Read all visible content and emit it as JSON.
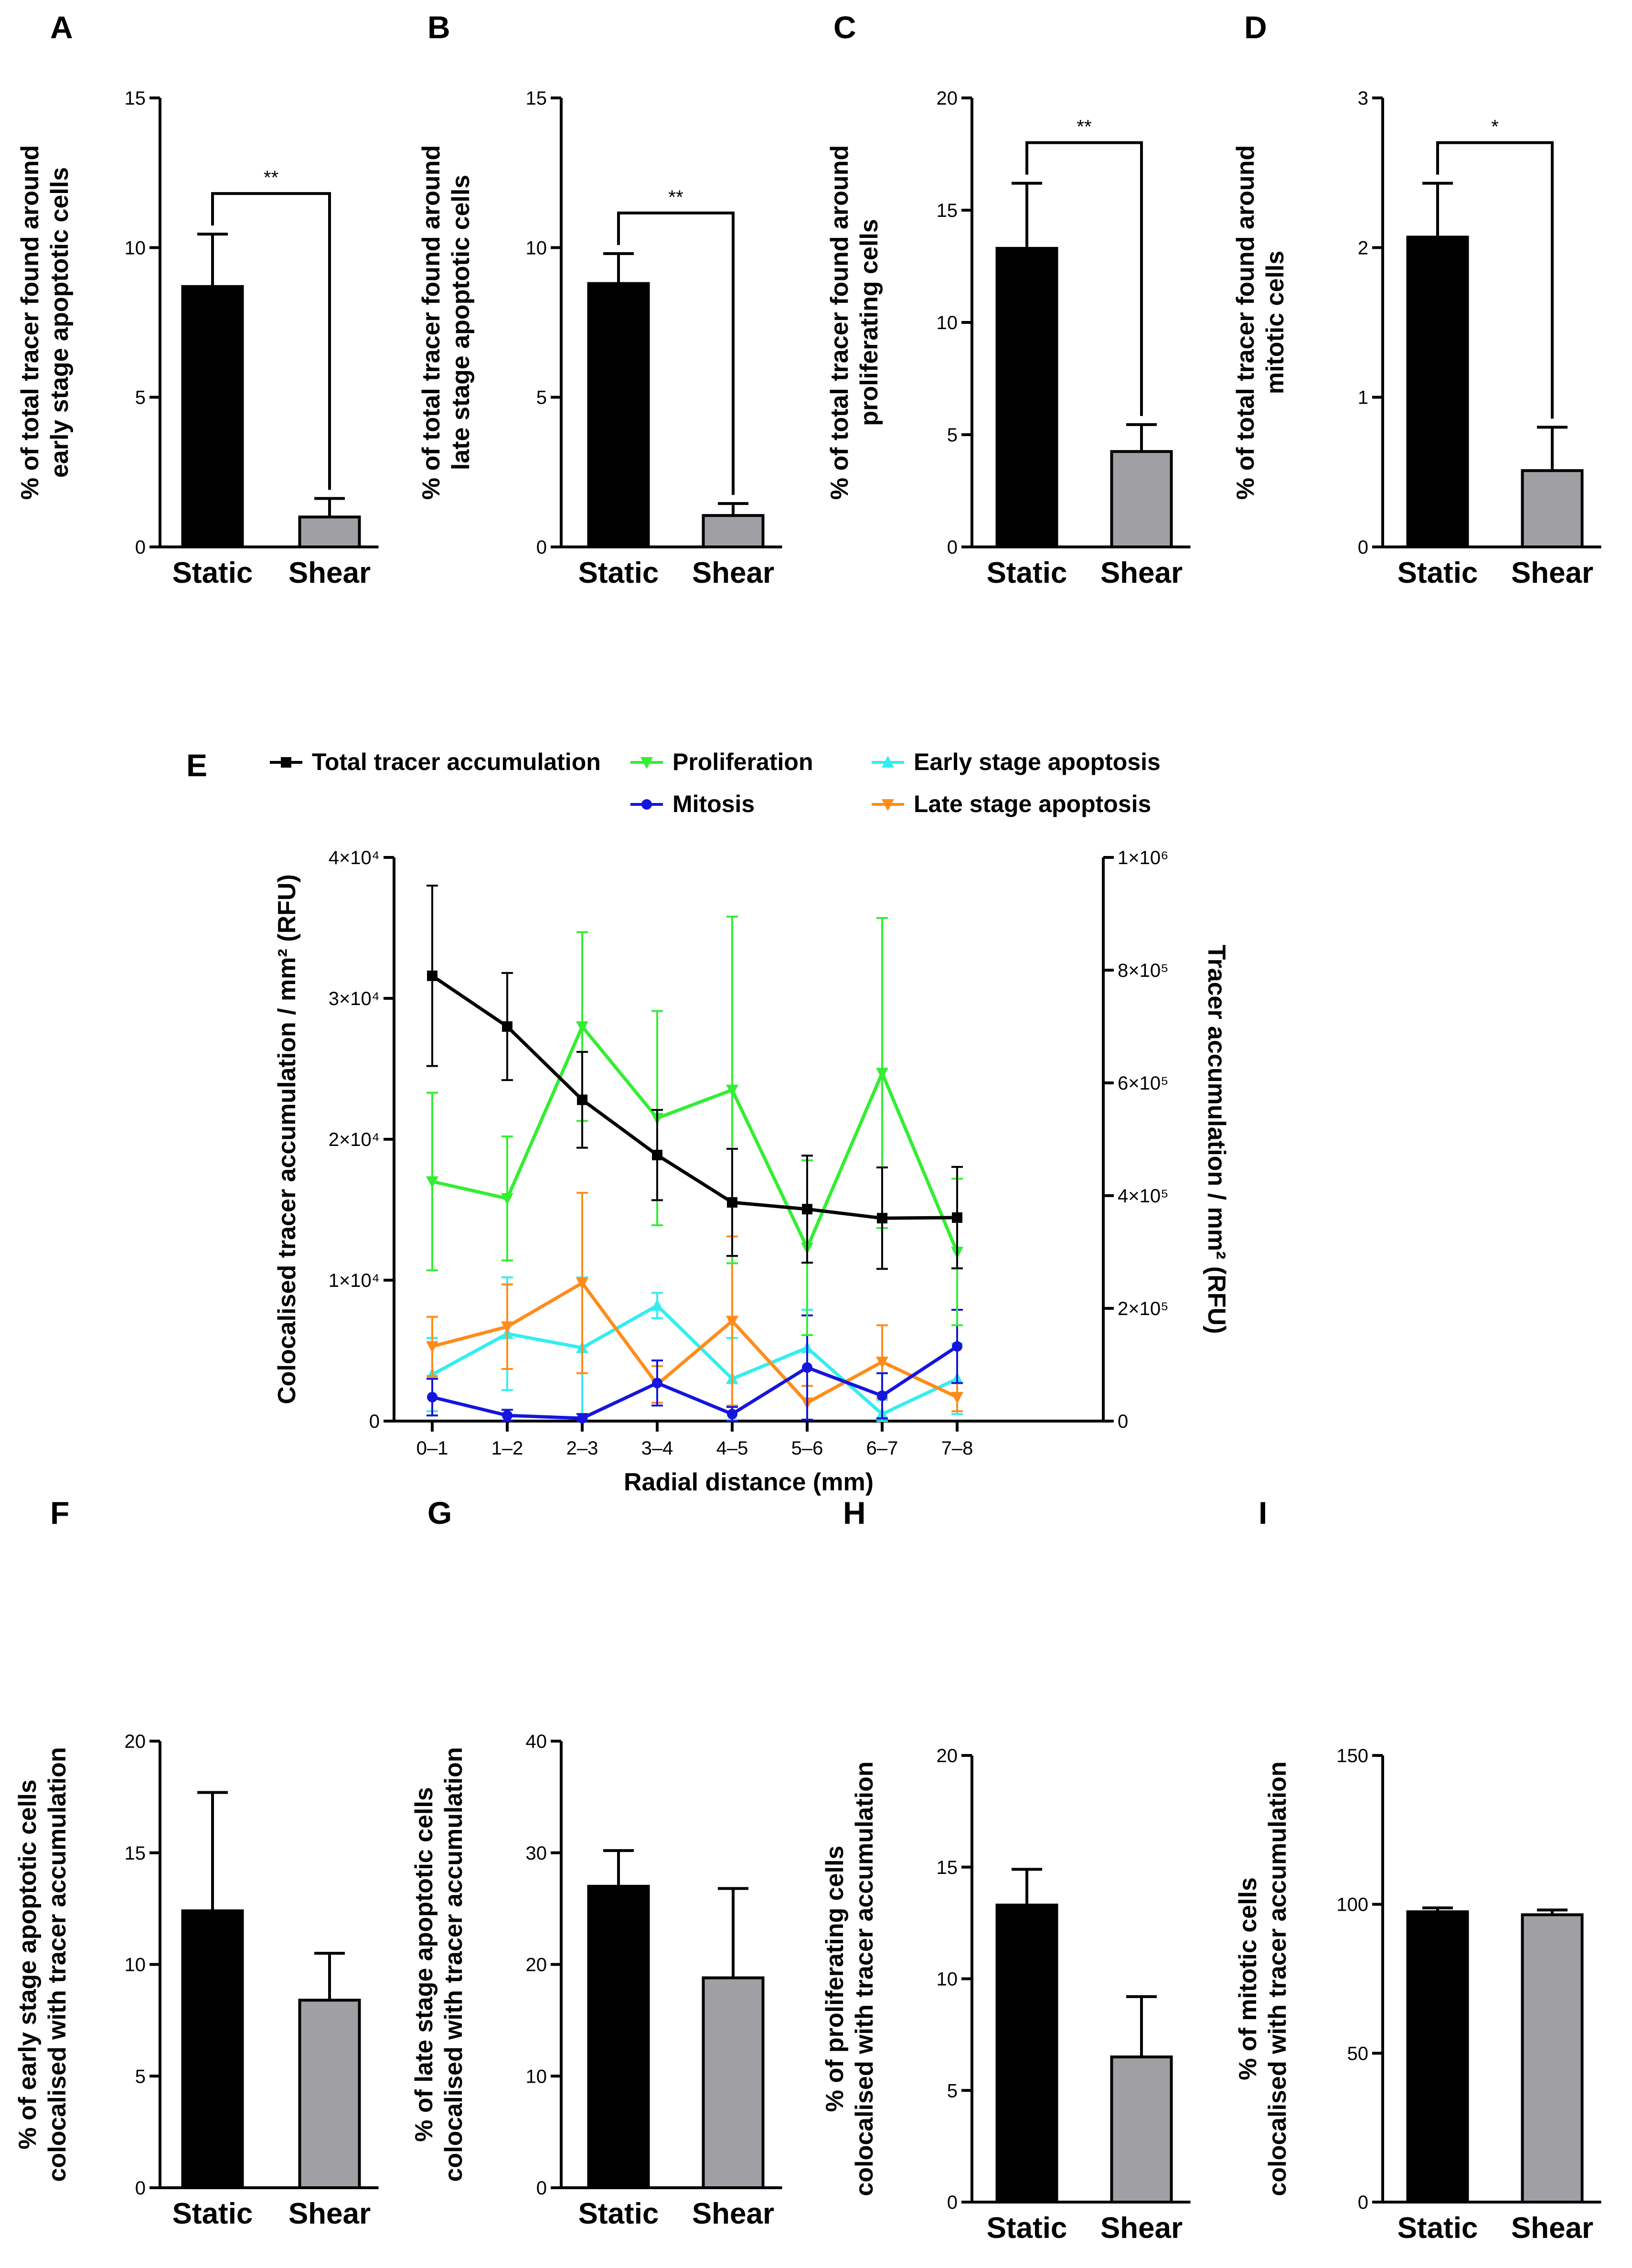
{
  "panel_letters": [
    "A",
    "B",
    "C",
    "D",
    "E",
    "F",
    "G",
    "H",
    "I"
  ],
  "chart_data": [
    {
      "id": "A",
      "type": "bar",
      "categories": [
        "Static",
        "Shear"
      ],
      "values": [
        8.7,
        1.0
      ],
      "errors": [
        1.75,
        0.62
      ],
      "colors": [
        "#000000",
        "#a0a0a4"
      ],
      "ylabel_lines": [
        "% of total tracer found around",
        "early stage apoptotic cells"
      ],
      "ylim": [
        0,
        15
      ],
      "yticks": [
        0,
        5,
        10,
        15
      ],
      "ytick_labels": [
        "0",
        "5",
        "10",
        "15"
      ],
      "significance": "**"
    },
    {
      "id": "B",
      "type": "bar",
      "categories": [
        "Static",
        "Shear"
      ],
      "values": [
        8.8,
        1.05
      ],
      "errors": [
        1.0,
        0.4
      ],
      "colors": [
        "#000000",
        "#a0a0a4"
      ],
      "ylabel_lines": [
        "% of total tracer found around",
        "late stage apoptotic cells"
      ],
      "ylim": [
        0,
        15
      ],
      "yticks": [
        0,
        5,
        10,
        15
      ],
      "ytick_labels": [
        "0",
        "5",
        "10",
        "15"
      ],
      "significance": "**"
    },
    {
      "id": "C",
      "type": "bar",
      "categories": [
        "Static",
        "Shear"
      ],
      "values": [
        13.3,
        4.25
      ],
      "errors": [
        2.9,
        1.2
      ],
      "colors": [
        "#000000",
        "#a0a0a4"
      ],
      "ylabel_lines": [
        "% of total tracer found around",
        "proliferating cells"
      ],
      "ylim": [
        0,
        20
      ],
      "yticks": [
        0,
        5,
        10,
        15,
        20
      ],
      "ytick_labels": [
        "0",
        "5",
        "10",
        "15",
        "20"
      ],
      "significance": "**"
    },
    {
      "id": "D",
      "type": "bar",
      "categories": [
        "Static",
        "Shear"
      ],
      "values": [
        2.07,
        0.51
      ],
      "errors": [
        0.36,
        0.29
      ],
      "colors": [
        "#000000",
        "#a0a0a4"
      ],
      "ylabel_lines": [
        "% of total tracer found around",
        "mitotic cells"
      ],
      "ylim": [
        0,
        3
      ],
      "yticks": [
        0,
        1,
        2,
        3
      ],
      "ytick_labels": [
        "0",
        "1",
        "2",
        "3"
      ],
      "significance": "*"
    },
    {
      "id": "E",
      "type": "line",
      "categories": [
        "0–1",
        "1–2",
        "2–3",
        "3–4",
        "4–5",
        "5–6",
        "6–7",
        "7–8"
      ],
      "xlabel": "Radial distance (mm)",
      "ylabel_left": "Colocalised tracer accumulation / mm² (RFU)",
      "ylabel_right": "Tracer accumulation / mm² (RFU)",
      "ylim_left": [
        0,
        40000
      ],
      "yticks_left_labels": [
        "0",
        "1×10⁴",
        "2×10⁴",
        "3×10⁴",
        "4×10⁴"
      ],
      "ylim_right": [
        0,
        1000000
      ],
      "yticks_right_labels": [
        "0",
        "2×10⁵",
        "4×10⁵",
        "6×10⁵",
        "8×10⁵",
        "1×10⁶"
      ],
      "series": [
        {
          "name": "Total tracer accumulation",
          "axis": "right",
          "color": "#000000",
          "marker": "square",
          "values": [
            790000,
            700000,
            570000,
            472000,
            388000,
            376000,
            360000,
            361000
          ],
          "errors": [
            160000,
            95000,
            85000,
            80000,
            95000,
            95000,
            90000,
            90000
          ]
        },
        {
          "name": "Proliferation",
          "axis": "left",
          "color": "#33ee33",
          "marker": "triangle-down",
          "values": [
            17000,
            15800,
            28000,
            21500,
            23500,
            12300,
            24700,
            12000
          ],
          "errors": [
            6300,
            4400,
            6700,
            7600,
            12300,
            6200,
            11000,
            5200
          ]
        },
        {
          "name": "Early stage apoptosis",
          "axis": "left",
          "color": "#33eeee",
          "marker": "triangle-up",
          "values": [
            3300,
            6200,
            5200,
            8200,
            3000,
            5200,
            500,
            3000
          ],
          "errors": [
            2600,
            4000,
            5000,
            900,
            2900,
            2700,
            1000,
            2500
          ]
        },
        {
          "name": "Mitosis",
          "axis": "left",
          "color": "#1515dd",
          "marker": "circle",
          "values": [
            1700,
            400,
            200,
            2700,
            500,
            3800,
            1800,
            5300
          ],
          "errors": [
            1300,
            400,
            300,
            1600,
            500,
            3700,
            1600,
            2600
          ]
        },
        {
          "name": "Late stage apoptosis",
          "axis": "left",
          "color": "#ff8c1a",
          "marker": "triangle-down",
          "values": [
            5300,
            6700,
            9800,
            2600,
            7100,
            1300,
            4200,
            1700
          ],
          "errors": [
            2100,
            3000,
            6400,
            1300,
            6000,
            1200,
            2600,
            1000
          ]
        }
      ]
    },
    {
      "id": "F",
      "type": "bar",
      "categories": [
        "Static",
        "Shear"
      ],
      "values": [
        12.4,
        8.4
      ],
      "errors": [
        5.3,
        2.1
      ],
      "colors": [
        "#000000",
        "#a0a0a4"
      ],
      "ylabel_lines": [
        "% of early stage apoptotic cells",
        "colocalised with tracer accumulation"
      ],
      "ylim": [
        0,
        20
      ],
      "yticks": [
        0,
        5,
        10,
        15,
        20
      ],
      "ytick_labels": [
        "0",
        "5",
        "10",
        "15",
        "20"
      ],
      "significance": ""
    },
    {
      "id": "G",
      "type": "bar",
      "categories": [
        "Static",
        "Shear"
      ],
      "values": [
        27.0,
        18.8
      ],
      "errors": [
        3.2,
        8.0
      ],
      "colors": [
        "#000000",
        "#a0a0a4"
      ],
      "ylabel_lines": [
        "% of late stage apoptotic cells",
        "colocalised with tracer accumulation"
      ],
      "ylim": [
        0,
        40
      ],
      "yticks": [
        0,
        10,
        20,
        30,
        40
      ],
      "ytick_labels": [
        "0",
        "10",
        "20",
        "30",
        "40"
      ],
      "significance": ""
    },
    {
      "id": "H",
      "type": "bar",
      "categories": [
        "Static",
        "Shear"
      ],
      "values": [
        13.3,
        6.5
      ],
      "errors": [
        1.6,
        2.7
      ],
      "colors": [
        "#000000",
        "#a0a0a4"
      ],
      "ylabel_lines": [
        "% of proliferating cells",
        "colocalised with tracer accumulation"
      ],
      "ylim": [
        0,
        20
      ],
      "yticks": [
        0,
        5,
        10,
        15,
        20
      ],
      "ytick_labels": [
        "0",
        "5",
        "10",
        "15",
        "20"
      ],
      "significance": ""
    },
    {
      "id": "I",
      "type": "bar",
      "categories": [
        "Static",
        "Shear"
      ],
      "values": [
        97.5,
        96.5
      ],
      "errors": [
        1.3,
        1.6
      ],
      "colors": [
        "#000000",
        "#a0a0a4"
      ],
      "ylabel_lines": [
        "% of mitotic cells",
        "colocalised with tracer accumulation"
      ],
      "ylim": [
        0,
        150
      ],
      "yticks": [
        0,
        50,
        100,
        150
      ],
      "ytick_labels": [
        "0",
        "50",
        "100",
        "150"
      ],
      "significance": ""
    }
  ]
}
